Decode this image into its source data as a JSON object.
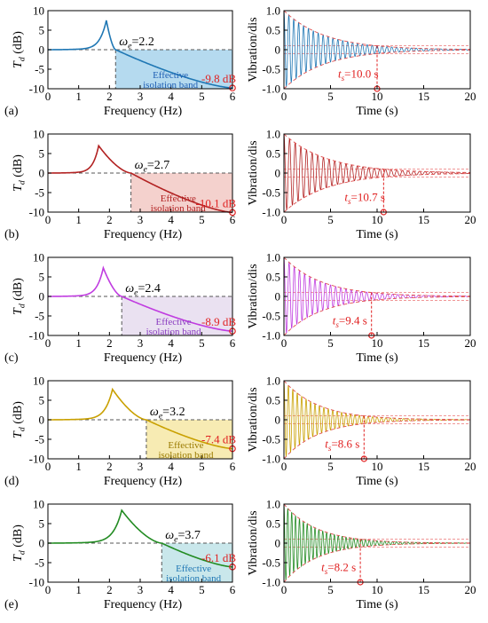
{
  "figure": {
    "left_axis": {
      "xlabel": "Frequency (Hz)",
      "ylabel_main": "T",
      "ylabel_sub": "d",
      "ylabel_unit": " (dB)",
      "xticks": [
        0,
        1,
        2,
        3,
        4,
        5,
        6
      ],
      "yticks": [
        10,
        5,
        0,
        -5,
        -10
      ],
      "xlim": [
        0,
        6
      ],
      "ylim": [
        -10,
        10
      ]
    },
    "right_axis": {
      "xlabel": "Time (s)",
      "ylabel": "Vibration/dis",
      "xticks": [
        0,
        5,
        10,
        15,
        20
      ],
      "yticks": [
        "1.0",
        "0.5",
        "0",
        "-0.5",
        "-1.0"
      ],
      "xlim": [
        0,
        20
      ],
      "ylim": [
        -1,
        1
      ]
    },
    "band_label_line1": "Effective",
    "band_label_line2": "isolation band"
  },
  "chart_data": [
    {
      "panel": "(a)",
      "type": "line",
      "color": "#1f77b4",
      "band_color": "#a8d4ec",
      "band_text_color": "#1f5fb4",
      "left": {
        "omega_label": "ω",
        "omega_sub": "e",
        "omega_value": "=2.2",
        "omega_e": 2.2,
        "peak_freq": 1.9,
        "peak_db": 7.5,
        "end_freq": 6,
        "end_db": -9.8,
        "end_label": "-9.8 dB"
      },
      "right": {
        "settle_main": "t",
        "settle_sub": "s",
        "settle_value": "=10.0 s",
        "settle_time": 10.0,
        "osc_freq_hz": 1.9
      }
    },
    {
      "panel": "(b)",
      "type": "line",
      "color": "#b22222",
      "band_color": "#f2c9c4",
      "band_text_color": "#b22222",
      "left": {
        "omega_label": "ω",
        "omega_sub": "e",
        "omega_value": "=2.7",
        "omega_e": 2.7,
        "peak_freq": 1.65,
        "peak_db": 7.0,
        "end_freq": 6,
        "end_db": -10.1,
        "end_label": "-10.1 dB"
      },
      "right": {
        "settle_main": "t",
        "settle_sub": "s",
        "settle_value": "=10.7 s",
        "settle_time": 10.7,
        "osc_freq_hz": 1.65
      }
    },
    {
      "panel": "(c)",
      "type": "line",
      "color": "#c03ce0",
      "band_color": "#e6dcef",
      "band_text_color": "#8a3cc0",
      "left": {
        "omega_label": "ω",
        "omega_sub": "e",
        "omega_value": "=2.4",
        "omega_e": 2.4,
        "peak_freq": 1.8,
        "peak_db": 7.3,
        "end_freq": 6,
        "end_db": -8.9,
        "end_label": "-8.9 dB"
      },
      "right": {
        "settle_main": "t",
        "settle_sub": "s",
        "settle_value": "=9.4 s",
        "settle_time": 9.4,
        "osc_freq_hz": 1.8
      }
    },
    {
      "panel": "(d)",
      "type": "line",
      "color": "#c9a000",
      "band_color": "#f6e7a6",
      "band_text_color": "#9a7a00",
      "left": {
        "omega_label": "ω",
        "omega_sub": "e",
        "omega_value": "=3.2",
        "omega_e": 3.2,
        "peak_freq": 2.1,
        "peak_db": 7.8,
        "end_freq": 6,
        "end_db": -7.4,
        "end_label": "-7.4 dB"
      },
      "right": {
        "settle_main": "t",
        "settle_sub": "s",
        "settle_value": "=8.6 s",
        "settle_time": 8.6,
        "osc_freq_hz": 2.1
      }
    },
    {
      "panel": "(e)",
      "type": "line",
      "color": "#228b22",
      "band_color": "#bfe3e8",
      "band_text_color": "#1f77b4",
      "left": {
        "omega_label": "ω",
        "omega_sub": "e",
        "omega_value": "=3.7",
        "omega_e": 3.7,
        "peak_freq": 2.4,
        "peak_db": 8.4,
        "end_freq": 6,
        "end_db": -6.1,
        "end_label": "-6.1 dB"
      },
      "right": {
        "settle_main": "t",
        "settle_sub": "s",
        "settle_value": "=8.2 s",
        "settle_time": 8.2,
        "osc_freq_hz": 2.4
      }
    }
  ]
}
